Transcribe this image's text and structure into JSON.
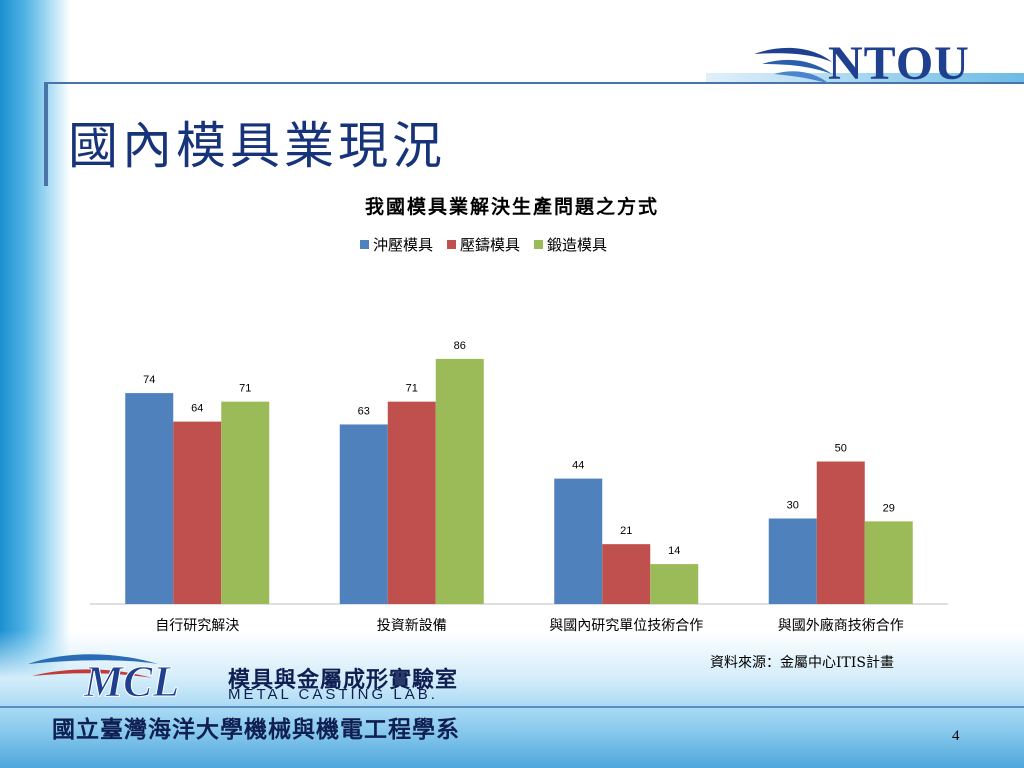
{
  "slide": {
    "title": "國內模具業現況",
    "page_number": "4",
    "source": "資料來源：金屬中心ITIS計畫",
    "ntou_logo_text": "NTOU",
    "lab_name_cn": "模具與金屬成形實驗室",
    "lab_name_en": "METAL CASTING LAB.",
    "university": "國立臺灣海洋大學機械與機電工程學系",
    "mcl_logo_text": "MCL"
  },
  "colors": {
    "series_blue": "#4f81bd",
    "series_red": "#c0504d",
    "series_green": "#9bbb59",
    "title_navy": "#17347a"
  },
  "chart_data": {
    "type": "bar",
    "title": "我國模具業解決生產問題之方式",
    "categories": [
      "自行研究解決",
      "投資新設備",
      "與國內研究單位技術合作",
      "與國外廠商技術合作"
    ],
    "series": [
      {
        "name": "沖壓模具",
        "values": [
          74,
          63,
          44,
          30
        ]
      },
      {
        "name": "壓鑄模具",
        "values": [
          64,
          71,
          21,
          50
        ]
      },
      {
        "name": "鍛造模具",
        "values": [
          71,
          86,
          14,
          29
        ]
      }
    ],
    "ylim": [
      0,
      100
    ],
    "legend": "top",
    "grid": false,
    "data_labels": true
  }
}
